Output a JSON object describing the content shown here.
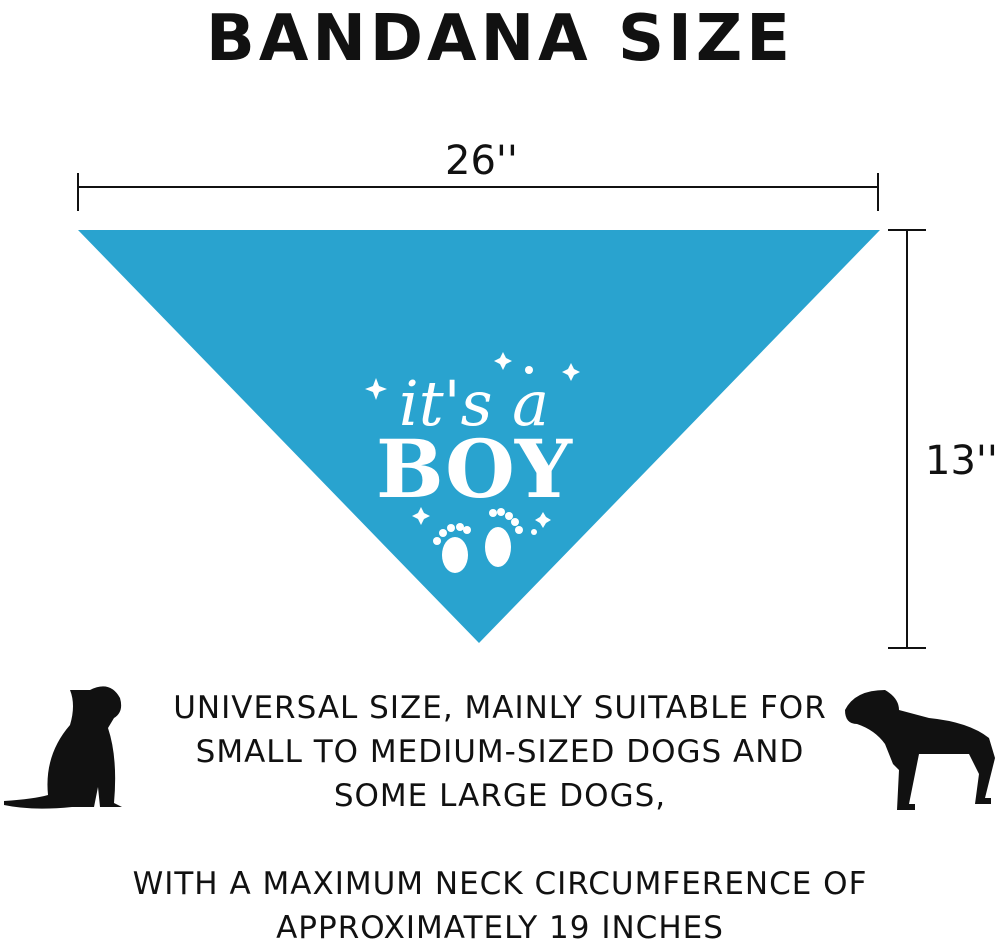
{
  "title": "BANDANA SIZE",
  "width_label": "26''",
  "height_label": "13''",
  "design": {
    "line1": "it's a",
    "line2": "BOY"
  },
  "caption_lines": [
    "UNIVERSAL SIZE, MAINLY SUITABLE FOR",
    "SMALL TO MEDIUM-SIZED DOGS AND",
    "SOME LARGE DOGS,"
  ],
  "caption2_lines": [
    "WITH A MAXIMUM NECK CIRCUMFERENCE OF",
    "APPROXIMATELY 19 INCHES"
  ],
  "colors": {
    "bandana": "#29a3cf",
    "text": "#111111"
  }
}
